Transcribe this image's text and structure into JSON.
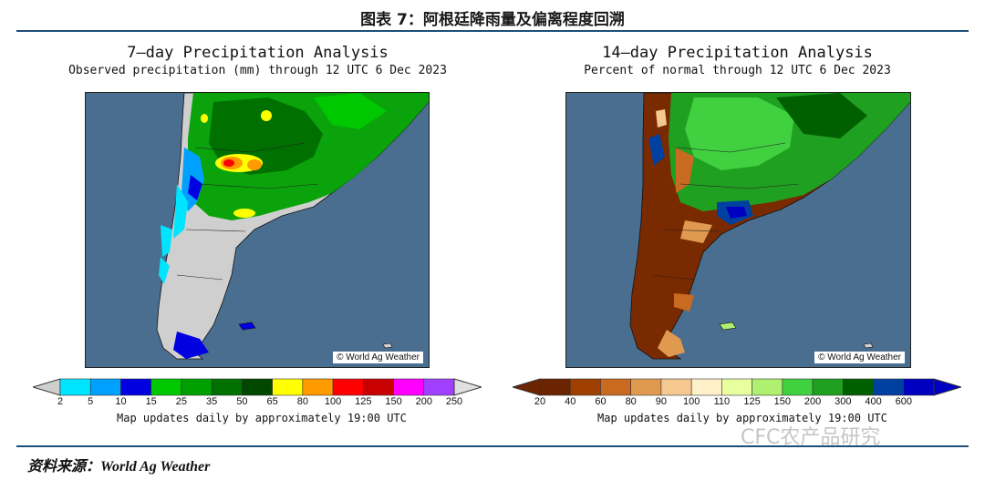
{
  "figure_title": "图表 7：阿根廷降雨量及偏离程度回溯",
  "left_map": {
    "title": "7–day Precipitation Analysis",
    "subtitle": "Observed precipitation (mm) through 12 UTC 6 Dec 2023",
    "credit": "© World Ag Weather",
    "legend": {
      "labels": [
        "2",
        "5",
        "10",
        "15",
        "25",
        "35",
        "50",
        "65",
        "80",
        "100",
        "125",
        "150",
        "200",
        "250"
      ],
      "colors": [
        "#00e5ff",
        "#00a0ff",
        "#0000e0",
        "#00c800",
        "#00a000",
        "#007000",
        "#004800",
        "#ffff00",
        "#ff9a00",
        "#ff0000",
        "#c80000",
        "#ff00ff",
        "#a040ff"
      ]
    },
    "note": "Map updates daily by approximately 19:00 UTC"
  },
  "right_map": {
    "title": "14–day Precipitation Analysis",
    "subtitle": "Percent of normal through 12 UTC 6 Dec 2023",
    "credit": "© World Ag Weather",
    "legend": {
      "labels": [
        "20",
        "40",
        "60",
        "80",
        "90",
        "100",
        "110",
        "125",
        "150",
        "200",
        "300",
        "400",
        "600"
      ],
      "colors": [
        "#6b2300",
        "#a04000",
        "#c86a20",
        "#e09a50",
        "#f5c890",
        "#fff0c8",
        "#e8ffa0",
        "#b0f070",
        "#40d040",
        "#20a020",
        "#006000",
        "#0040a0",
        "#0000c0"
      ]
    },
    "note": "Map updates daily by approximately 19:00 UTC"
  },
  "source": "资料来源：World Ag Weather",
  "watermark": "CFC农产品研究"
}
